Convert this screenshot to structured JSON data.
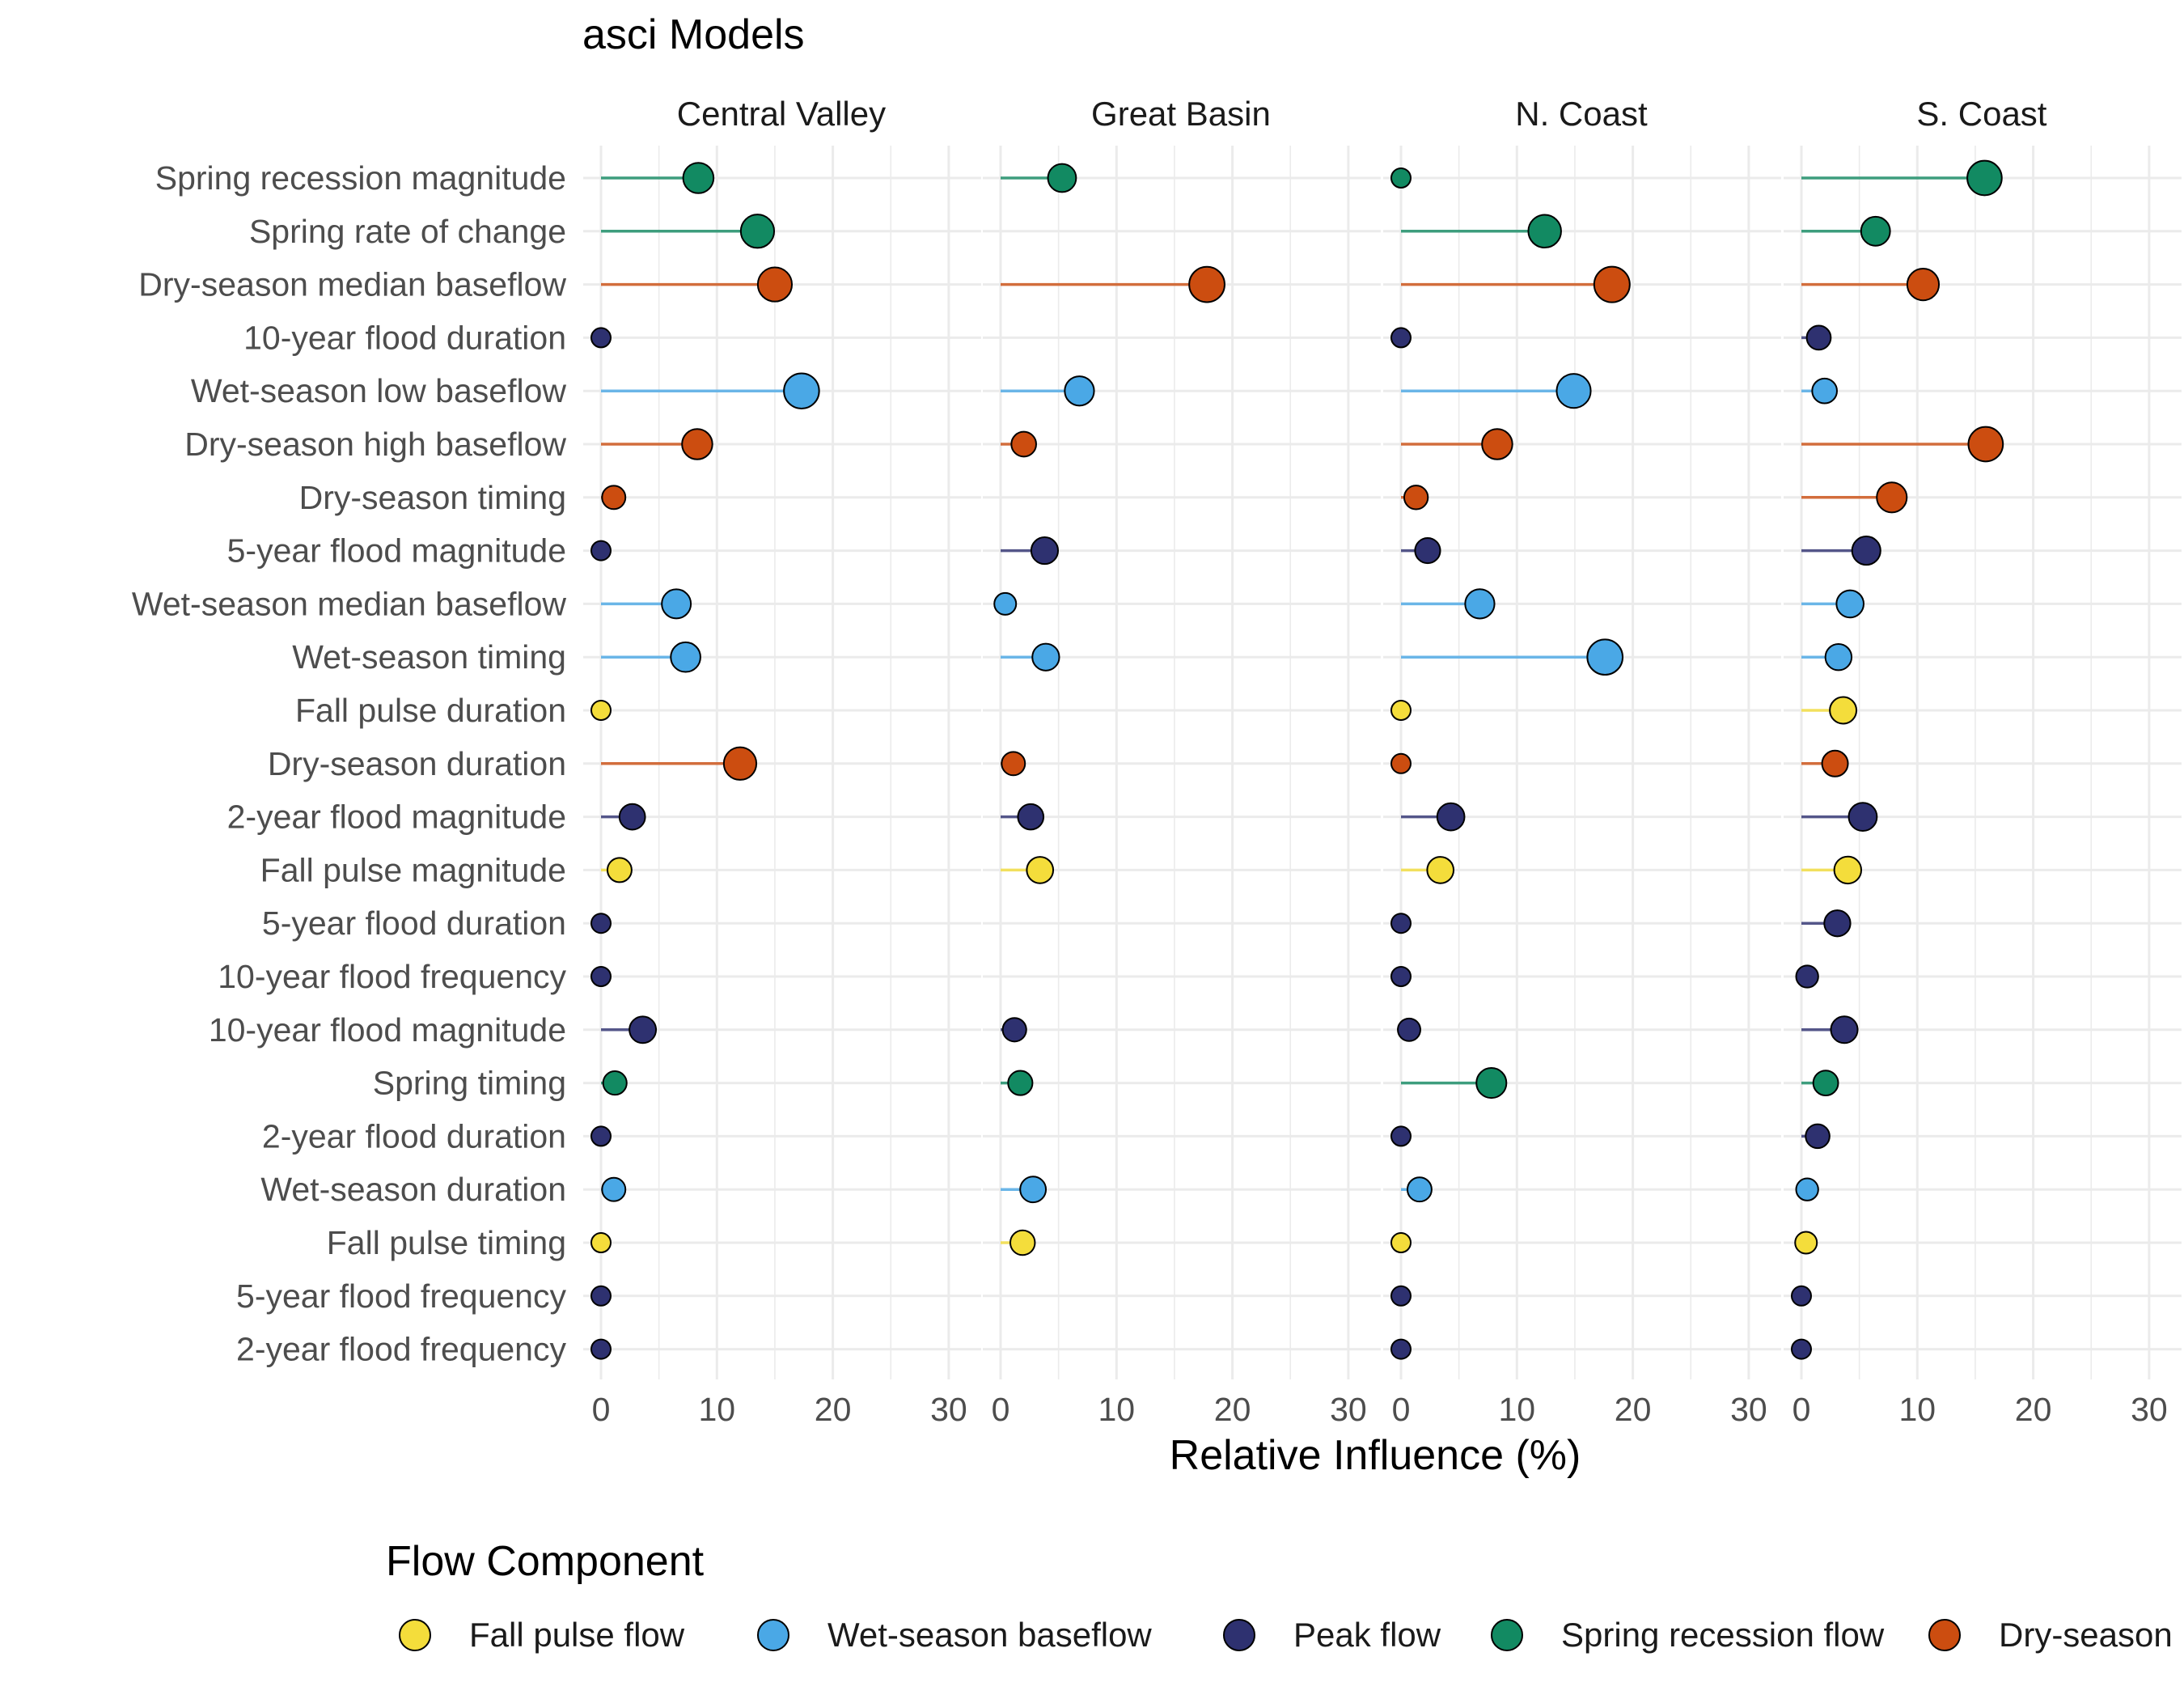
{
  "chart_data": {
    "type": "lollipop",
    "title": "asci Models",
    "xlabel": "Relative Influence (%)",
    "ylabel": "",
    "xlim": [
      0,
      30
    ],
    "xticks": [
      0,
      10,
      20,
      30
    ],
    "grid": true,
    "legend": {
      "title": "Flow Component",
      "placement": "bottom",
      "items": [
        {
          "name": "Fall pulse flow",
          "color": "#F4DD3B"
        },
        {
          "name": "Wet-season baseflow",
          "color": "#4AA8E6"
        },
        {
          "name": "Peak flow",
          "color": "#2E3170"
        },
        {
          "name": "Spring recession flow",
          "color": "#128A62"
        },
        {
          "name": "Dry-season baseflow",
          "color": "#CC4D10"
        }
      ]
    },
    "metrics": [
      {
        "label": "Spring recession magnitude",
        "component": 3
      },
      {
        "label": "Spring rate of change",
        "component": 3
      },
      {
        "label": "Dry-season median baseflow",
        "component": 4
      },
      {
        "label": "10-year flood duration",
        "component": 2
      },
      {
        "label": "Wet-season low baseflow",
        "component": 1
      },
      {
        "label": "Dry-season high baseflow",
        "component": 4
      },
      {
        "label": "Dry-season timing",
        "component": 4
      },
      {
        "label": "5-year flood magnitude",
        "component": 2
      },
      {
        "label": "Wet-season median baseflow",
        "component": 1
      },
      {
        "label": "Wet-season timing",
        "component": 1
      },
      {
        "label": "Fall pulse duration",
        "component": 0
      },
      {
        "label": "Dry-season duration",
        "component": 4
      },
      {
        "label": "2-year flood magnitude",
        "component": 2
      },
      {
        "label": "Fall pulse magnitude",
        "component": 0
      },
      {
        "label": "5-year flood duration",
        "component": 2
      },
      {
        "label": "10-year flood frequency",
        "component": 2
      },
      {
        "label": "10-year flood magnitude",
        "component": 2
      },
      {
        "label": "Spring timing",
        "component": 3
      },
      {
        "label": "2-year flood duration",
        "component": 2
      },
      {
        "label": "Wet-season duration",
        "component": 1
      },
      {
        "label": "Fall pulse timing",
        "component": 0
      },
      {
        "label": "5-year flood frequency",
        "component": 2
      },
      {
        "label": "2-year flood frequency",
        "component": 2
      }
    ],
    "panels": [
      {
        "name": "Central Valley",
        "values": [
          8.4,
          13.5,
          15.0,
          0,
          17.3,
          8.3,
          1.1,
          0,
          6.5,
          7.3,
          0,
          12.0,
          2.7,
          1.6,
          0,
          0,
          3.6,
          1.2,
          0,
          1.1,
          0,
          0,
          0
        ]
      },
      {
        "name": "Great Basin",
        "values": [
          5.3,
          null,
          17.8,
          null,
          6.8,
          2.0,
          null,
          3.8,
          0.4,
          3.9,
          null,
          1.1,
          2.6,
          3.4,
          null,
          null,
          1.2,
          1.7,
          null,
          2.8,
          1.9,
          null,
          null
        ]
      },
      {
        "name": "N. Coast",
        "values": [
          0,
          12.4,
          18.2,
          0,
          14.9,
          8.3,
          1.3,
          2.3,
          6.8,
          17.6,
          0,
          0,
          4.3,
          3.4,
          0,
          0,
          0.7,
          7.8,
          0,
          1.6,
          0,
          0,
          0
        ]
      },
      {
        "name": "S. Coast",
        "values": [
          15.8,
          6.4,
          10.5,
          1.5,
          2.0,
          15.9,
          7.8,
          5.6,
          4.2,
          3.2,
          3.6,
          2.9,
          5.3,
          4.0,
          3.1,
          0.5,
          3.7,
          2.1,
          1.4,
          0.5,
          0.4,
          0,
          0
        ]
      }
    ]
  }
}
